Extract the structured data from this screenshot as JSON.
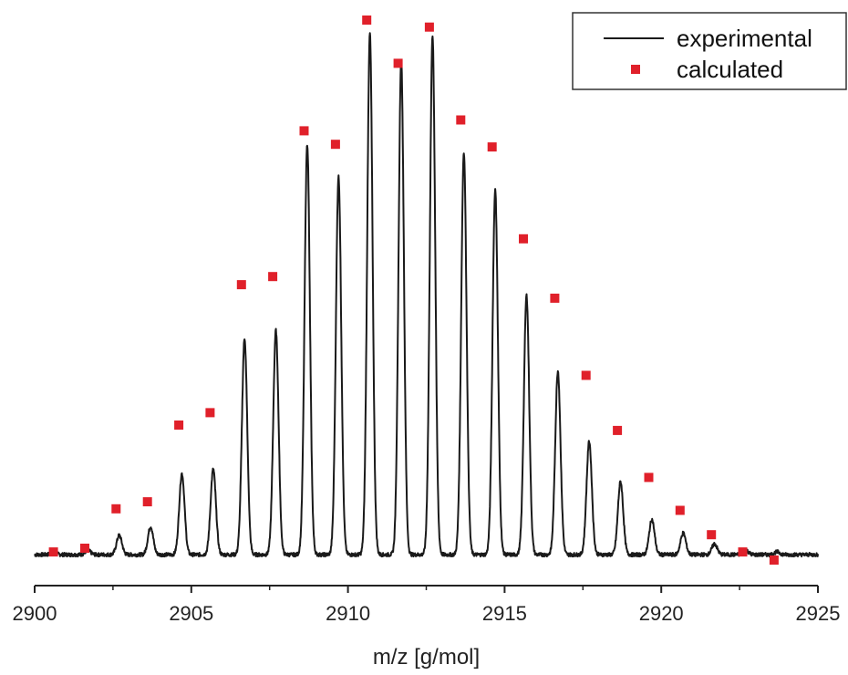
{
  "chart_data": {
    "type": "line",
    "title": "",
    "xlabel": "m/z [g/mol]",
    "ylabel": "",
    "xlim": [
      2900,
      2925
    ],
    "ylim": [
      0,
      100
    ],
    "x_ticks": [
      2900,
      2905,
      2910,
      2915,
      2920,
      2925
    ],
    "x_tick_labels": [
      "2900",
      "2905",
      "2910",
      "2915",
      "2920",
      "2925"
    ],
    "grid": false,
    "legend_position": "top-right",
    "colors": {
      "experimental": "#1a1a1a",
      "calculated": "#e0202a"
    },
    "series": [
      {
        "name": "experimental",
        "style": "line",
        "baseline": 1,
        "peaks": [
          {
            "x": 2900.6,
            "y": 1.5
          },
          {
            "x": 2901.7,
            "y": 1.8
          },
          {
            "x": 2902.7,
            "y": 4.6
          },
          {
            "x": 2903.7,
            "y": 6.2
          },
          {
            "x": 2904.7,
            "y": 16.0
          },
          {
            "x": 2905.7,
            "y": 16.8
          },
          {
            "x": 2906.7,
            "y": 41.0
          },
          {
            "x": 2907.7,
            "y": 42.5
          },
          {
            "x": 2908.7,
            "y": 77.0
          },
          {
            "x": 2909.7,
            "y": 71.0
          },
          {
            "x": 2910.7,
            "y": 97.5
          },
          {
            "x": 2911.7,
            "y": 92.5
          },
          {
            "x": 2912.7,
            "y": 97.0
          },
          {
            "x": 2913.7,
            "y": 75.5
          },
          {
            "x": 2914.7,
            "y": 68.5
          },
          {
            "x": 2915.7,
            "y": 49.0
          },
          {
            "x": 2916.7,
            "y": 35.0
          },
          {
            "x": 2917.7,
            "y": 22.0
          },
          {
            "x": 2918.7,
            "y": 14.5
          },
          {
            "x": 2919.7,
            "y": 7.5
          },
          {
            "x": 2920.7,
            "y": 5.0
          },
          {
            "x": 2921.7,
            "y": 3.0
          },
          {
            "x": 2922.7,
            "y": 1.8
          },
          {
            "x": 2923.7,
            "y": 1.5
          }
        ]
      },
      {
        "name": "calculated",
        "style": "markers",
        "x": [
          2900.6,
          2901.6,
          2902.6,
          2903.6,
          2904.6,
          2905.6,
          2906.6,
          2907.6,
          2908.6,
          2909.6,
          2910.6,
          2911.6,
          2912.6,
          2913.6,
          2914.6,
          2915.6,
          2916.6,
          2917.6,
          2918.6,
          2919.6,
          2920.6,
          2921.6,
          2922.6,
          2923.6
        ],
        "y": [
          1.5,
          2.2,
          9.5,
          10.8,
          25.0,
          27.3,
          51.0,
          52.5,
          79.5,
          77.0,
          100.0,
          92.0,
          98.7,
          81.5,
          76.5,
          59.5,
          48.5,
          34.2,
          24.0,
          15.3,
          9.2,
          4.7,
          1.5,
          0.0
        ]
      }
    ]
  }
}
